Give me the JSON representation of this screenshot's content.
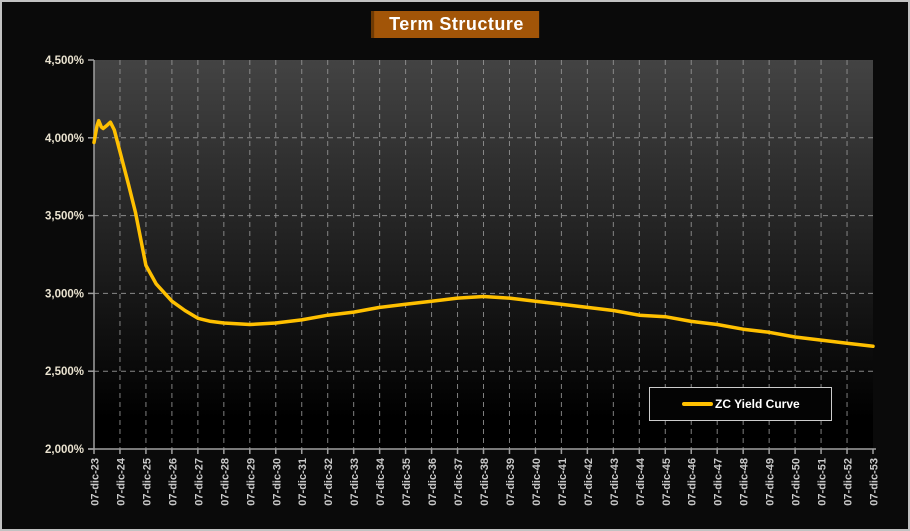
{
  "window": {
    "background": "#0a0a0a",
    "border_color": "#c2c2c2"
  },
  "title": {
    "text": "Term Structure",
    "bg_color": "#a25508",
    "text_color": "#ffffff"
  },
  "legend": {
    "label": "ZC Yield Curve",
    "line_color": "#ffc000",
    "border_color": "#cccccc",
    "bg_color": "#040404",
    "position": "bottom-right"
  },
  "chart_data": {
    "type": "line",
    "title": "Term Structure",
    "xlabel": "",
    "ylabel": "",
    "grid": "dashed horizontal and vertical gridlines",
    "legend_position": "bottom-right inside plot",
    "plot_bg_gradient": [
      "#434343",
      "#000000"
    ],
    "gridline_color": "#969696",
    "axis_color": "#a0a0a0",
    "y_label_color": "#eae3d0",
    "x_label_color": "#c9c9c9",
    "series_color": "#ffc000",
    "ylim": [
      2.0,
      4.5
    ],
    "x_years_range": [
      0,
      30
    ],
    "y_tick_values": [
      4.5,
      4.0,
      3.5,
      3.0,
      2.5,
      2.0
    ],
    "y_tick_labels": [
      "4,500%",
      "4,000%",
      "3,500%",
      "3,000%",
      "2,500%",
      "2,000%"
    ],
    "x_tick_labels": [
      "07-dic-23",
      "07-dic-24",
      "07-dic-25",
      "07-dic-26",
      "07-dic-27",
      "07-dic-28",
      "07-dic-29",
      "07-dic-30",
      "07-dic-31",
      "07-dic-32",
      "07-dic-33",
      "07-dic-34",
      "07-dic-35",
      "07-dic-36",
      "07-dic-37",
      "07-dic-38",
      "07-dic-39",
      "07-dic-40",
      "07-dic-41",
      "07-dic-42",
      "07-dic-43",
      "07-dic-44",
      "07-dic-45",
      "07-dic-46",
      "07-dic-47",
      "07-dic-48",
      "07-dic-49",
      "07-dic-50",
      "07-dic-51",
      "07-dic-52",
      "07-dic-53"
    ],
    "series": [
      {
        "name": "ZC Yield Curve",
        "points_years_vs_percent": [
          [
            0,
            3.97
          ],
          [
            0.12,
            4.08
          ],
          [
            0.18,
            4.11
          ],
          [
            0.28,
            4.07
          ],
          [
            0.35,
            4.06
          ],
          [
            0.5,
            4.08
          ],
          [
            0.63,
            4.1
          ],
          [
            0.78,
            4.05
          ],
          [
            1,
            3.91
          ],
          [
            1.33,
            3.7
          ],
          [
            1.6,
            3.52
          ],
          [
            2,
            3.18
          ],
          [
            2.4,
            3.06
          ],
          [
            3,
            2.95
          ],
          [
            3.5,
            2.89
          ],
          [
            4,
            2.84
          ],
          [
            4.5,
            2.82
          ],
          [
            5,
            2.81
          ],
          [
            6,
            2.8
          ],
          [
            7,
            2.81
          ],
          [
            8,
            2.83
          ],
          [
            9,
            2.86
          ],
          [
            10,
            2.88
          ],
          [
            11,
            2.91
          ],
          [
            12,
            2.93
          ],
          [
            13,
            2.95
          ],
          [
            14,
            2.97
          ],
          [
            15,
            2.98
          ],
          [
            16,
            2.97
          ],
          [
            17,
            2.95
          ],
          [
            18,
            2.93
          ],
          [
            19,
            2.91
          ],
          [
            20,
            2.89
          ],
          [
            21,
            2.86
          ],
          [
            22,
            2.85
          ],
          [
            23,
            2.82
          ],
          [
            24,
            2.8
          ],
          [
            25,
            2.77
          ],
          [
            26,
            2.75
          ],
          [
            27,
            2.72
          ],
          [
            28,
            2.7
          ],
          [
            29,
            2.68
          ],
          [
            30,
            2.66
          ]
        ]
      }
    ]
  }
}
